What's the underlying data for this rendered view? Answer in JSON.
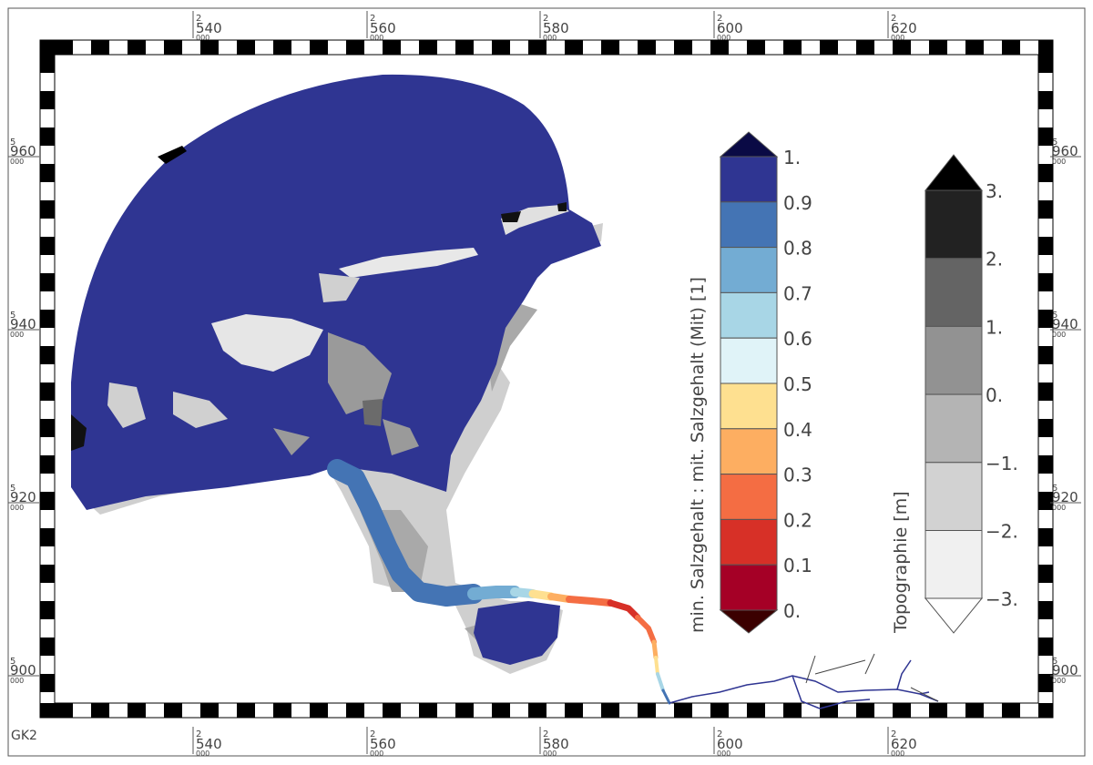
{
  "map": {
    "corner_label": "GK2",
    "x_ticks": [
      {
        "prefix": "2",
        "value": "540",
        "suffix": "000"
      },
      {
        "prefix": "2",
        "value": "560",
        "suffix": "000"
      },
      {
        "prefix": "2",
        "value": "580",
        "suffix": "000"
      },
      {
        "prefix": "2",
        "value": "600",
        "suffix": "000"
      },
      {
        "prefix": "2",
        "value": "620",
        "suffix": "000"
      }
    ],
    "y_ticks": [
      {
        "prefix": "5",
        "value": "960",
        "suffix": "000"
      },
      {
        "prefix": "5",
        "value": "940",
        "suffix": "000"
      },
      {
        "prefix": "5",
        "value": "920",
        "suffix": "000"
      },
      {
        "prefix": "5",
        "value": "900",
        "suffix": "000"
      }
    ]
  },
  "salinity_legend": {
    "title": "min. Salzgehalt : mit. Salzgehalt (Mit) [1]",
    "labels": [
      "1.",
      "0.9",
      "0.8",
      "0.7",
      "0.6",
      "0.5",
      "0.4",
      "0.3",
      "0.2",
      "0.1",
      "0."
    ],
    "colors": [
      "#2f3592",
      "#4474b4",
      "#73acd3",
      "#a8d6e6",
      "#e0f3f8",
      "#fee090",
      "#fdae61",
      "#f46d43",
      "#d73027",
      "#a50026"
    ],
    "arrow_top_color": "#0a0a45",
    "arrow_bottom_color": "#3b0000"
  },
  "topo_legend": {
    "title": "Topographie [m]",
    "labels": [
      "3.",
      "2.",
      "1.",
      "0.",
      "−1.",
      "−2.",
      "−3."
    ],
    "colors": [
      "#222222",
      "#646464",
      "#929292",
      "#b4b4b4",
      "#d2d2d2",
      "#f0f0f0"
    ],
    "arrow_top_color": "#000000",
    "arrow_bottom_color": "#ffffff"
  }
}
